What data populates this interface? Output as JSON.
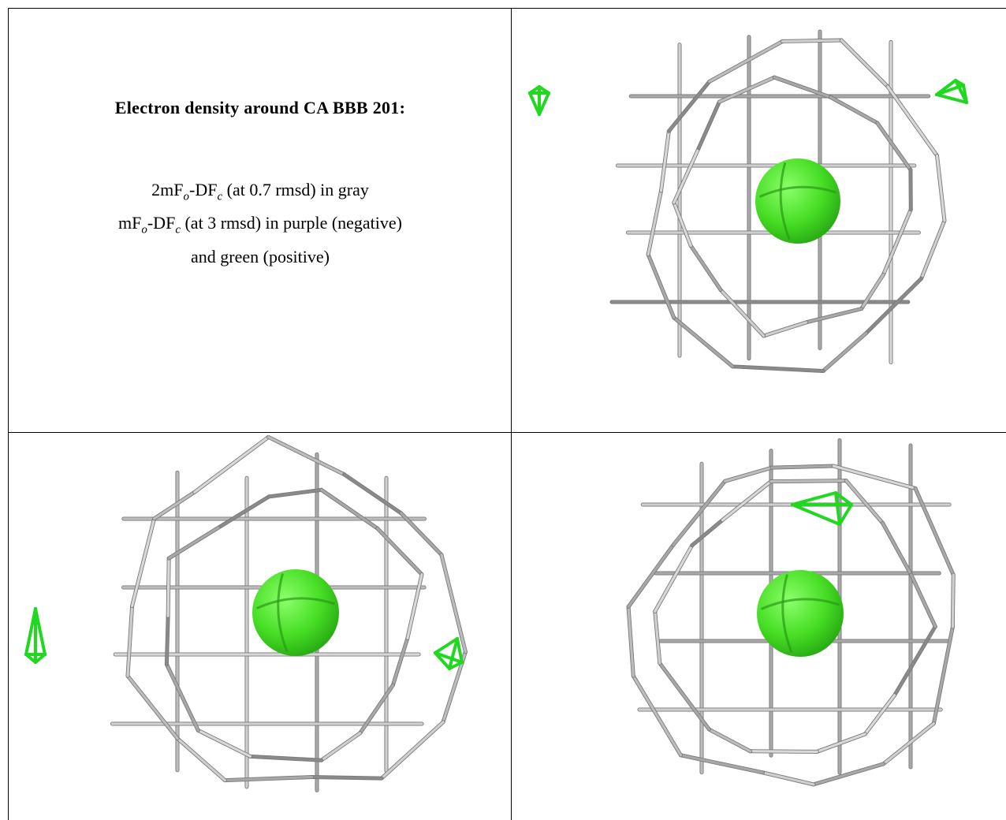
{
  "caption": {
    "title": "Electron density around CA BBB 201:",
    "lines": [
      [
        {
          "text": "2mF"
        },
        {
          "sub": "o"
        },
        {
          "text": "-DF"
        },
        {
          "sub": "c"
        },
        {
          "text": " (at 0.7 rmsd) in gray"
        }
      ],
      [
        {
          "text": "mF"
        },
        {
          "sub": "o"
        },
        {
          "text": "-DF"
        },
        {
          "sub": "c"
        },
        {
          "text": " (at 3 rmsd) in purple (negative)"
        }
      ],
      [
        {
          "text": "and green (positive)"
        }
      ]
    ]
  }
}
